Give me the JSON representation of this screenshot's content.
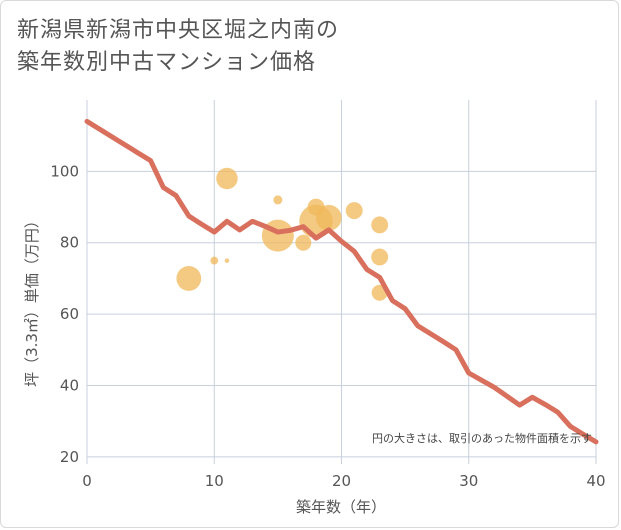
{
  "title_line1": "新潟県新潟市中央区堀之内南の",
  "title_line2": "築年数別中古マンション価格",
  "note": "円の大きさは、取引のあった物件面積を示す",
  "chart_data": {
    "type": "scatter",
    "xlabel": "築年数（年）",
    "ylabel": "坪（3.3㎡）単価（万円）",
    "xlim": [
      0,
      40
    ],
    "ylim": [
      18,
      120
    ],
    "xticks": [
      0,
      10,
      20,
      30,
      40
    ],
    "yticks": [
      20,
      40,
      60,
      80,
      100
    ],
    "grid": true,
    "colors": {
      "line": "#d9705d",
      "bubble": "#f0b85a"
    },
    "bubbles": [
      {
        "x": 8,
        "y": 70,
        "size": 60
      },
      {
        "x": 10,
        "y": 75,
        "size": 6
      },
      {
        "x": 11,
        "y": 98,
        "size": 45
      },
      {
        "x": 11,
        "y": 75,
        "size": 2
      },
      {
        "x": 15,
        "y": 82,
        "size": 100
      },
      {
        "x": 15,
        "y": 92,
        "size": 8
      },
      {
        "x": 17,
        "y": 80,
        "size": 25
      },
      {
        "x": 18,
        "y": 90,
        "size": 28
      },
      {
        "x": 18,
        "y": 86,
        "size": 110
      },
      {
        "x": 19,
        "y": 87,
        "size": 65
      },
      {
        "x": 21,
        "y": 89,
        "size": 28
      },
      {
        "x": 23,
        "y": 85,
        "size": 28
      },
      {
        "x": 23,
        "y": 76,
        "size": 28
      },
      {
        "x": 23,
        "y": 66,
        "size": 25
      }
    ],
    "trend": {
      "x": [
        0,
        1,
        2,
        3,
        4,
        5,
        6,
        7,
        8,
        9,
        10,
        11,
        12,
        13,
        14,
        15,
        16,
        17,
        18,
        19,
        20,
        21,
        22,
        23,
        24,
        25,
        26,
        27,
        28,
        29,
        30,
        31,
        32,
        33,
        34,
        35,
        36,
        37,
        38,
        39,
        40
      ],
      "y": [
        114,
        111.8,
        109.6,
        107.4,
        105.2,
        103,
        95.5,
        93.2,
        87.5,
        85.2,
        83,
        86,
        83.6,
        86,
        84.6,
        83,
        83.5,
        84.5,
        81.3,
        83.6,
        80.4,
        77.6,
        72.5,
        70.3,
        63.8,
        61.5,
        56.7,
        54.5,
        52.3,
        50,
        43.5,
        41.5,
        39.5,
        37,
        34.5,
        36.7,
        34.7,
        32.5,
        28.5,
        26.3,
        24.2
      ]
    }
  }
}
